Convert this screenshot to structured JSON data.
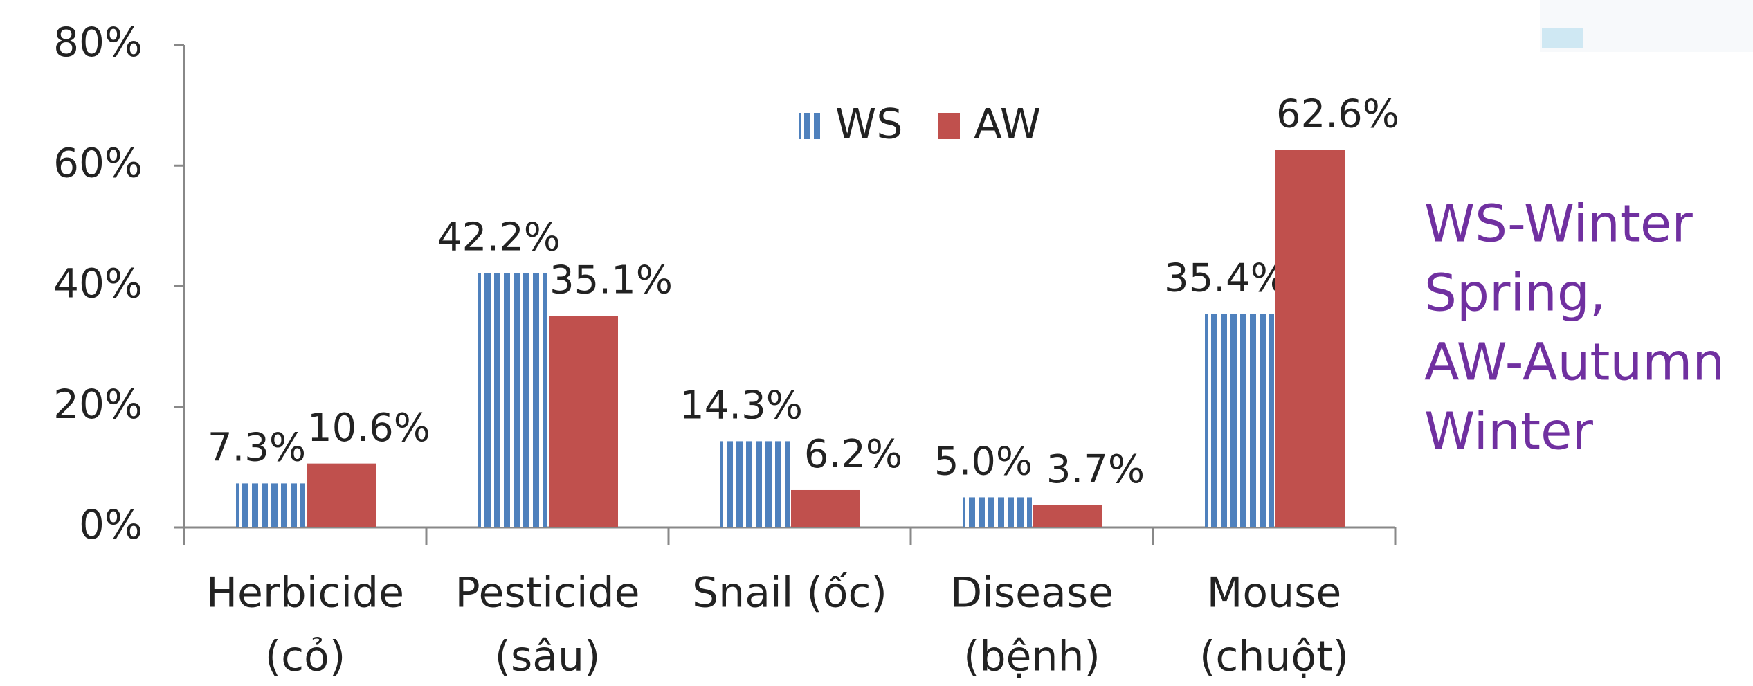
{
  "chart_data": {
    "type": "bar",
    "categories": [
      [
        "Herbicide",
        "(cỏ)"
      ],
      [
        "Pesticide",
        "(sâu)"
      ],
      [
        "Snail (ốc)"
      ],
      [
        "Disease",
        "(bệnh)"
      ],
      [
        "Mouse",
        "(chuột)"
      ]
    ],
    "series": [
      {
        "name": "WS",
        "color": "#4f81bd",
        "pattern": "vertical-stripes",
        "values": [
          7.3,
          42.2,
          14.3,
          5.0,
          35.4
        ],
        "value_labels": [
          "7.3%",
          "42.2%",
          "14.3%",
          "5.0%",
          "35.4%"
        ]
      },
      {
        "name": "AW",
        "color": "#c0504d",
        "values": [
          10.6,
          35.1,
          6.2,
          3.7,
          62.6
        ],
        "value_labels": [
          "10.6%",
          "35.1%",
          "6.2%",
          "3.7%",
          "62.6%"
        ]
      }
    ],
    "ylim": [
      0,
      80
    ],
    "yticks": [
      {
        "value": 0,
        "label": "0%"
      },
      {
        "value": 20,
        "label": "20%"
      },
      {
        "value": 40,
        "label": "40%"
      },
      {
        "value": 60,
        "label": "60%"
      },
      {
        "value": 80,
        "label": "80%"
      }
    ],
    "legend": "top",
    "annotation": [
      "WS-Winter",
      "Spring,",
      "AW-Autumn",
      "Winter"
    ],
    "annotation_color": "#7030a0"
  }
}
